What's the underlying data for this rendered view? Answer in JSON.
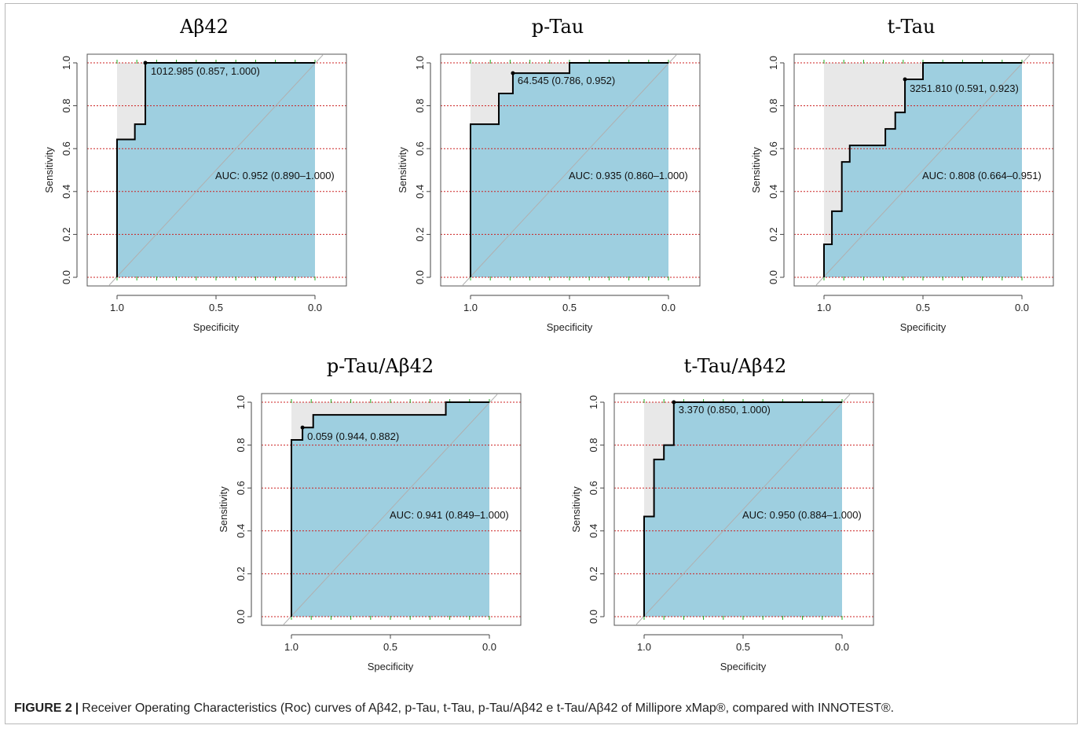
{
  "caption": {
    "label": "FIGURE 2",
    "separator": "|",
    "text": "Receiver Operating Characteristics (Roc) curves of Aβ42, p-Tau, t-Tau, p-Tau/Aβ42 e t-Tau/Aβ42 of Millipore xMap®, compared with INNOTEST®."
  },
  "colors": {
    "auc_fill": "#9ecfe0",
    "upper_fill": "#e8e8e8",
    "curve": "#000000",
    "diagonal": "#b0b0b0",
    "grid_dotted": "#cc2222",
    "tick_green": "#22aa22"
  },
  "chart_data": [
    {
      "type": "line",
      "title": "Aβ42",
      "xlabel": "Specificity",
      "ylabel": "Sensitivity",
      "xlim": [
        1.0,
        0.0
      ],
      "ylim": [
        0.0,
        1.0
      ],
      "x_ticks": [
        "1.0",
        "0.5",
        "0.0"
      ],
      "y_ticks": [
        "0.0",
        "0.2",
        "0.4",
        "0.6",
        "0.8",
        "1.0"
      ],
      "grid": "dotted horizontal",
      "series": [
        {
          "x": [
            1.0,
            1.0,
            0.91,
            0.91,
            0.86,
            0.857,
            0.857,
            0.0
          ],
          "y": [
            0.0,
            0.643,
            0.643,
            0.714,
            0.714,
            0.714,
            1.0,
            1.0
          ]
        }
      ],
      "threshold_point": {
        "x": 0.857,
        "y": 1.0,
        "label": "1012.985 (0.857, 1.000)"
      },
      "auc_label": "AUC: 0.952 (0.890–1.000)"
    },
    {
      "type": "line",
      "title": "p-Tau",
      "xlabel": "Specificity",
      "ylabel": "Sensitivity",
      "xlim": [
        1.0,
        0.0
      ],
      "ylim": [
        0.0,
        1.0
      ],
      "x_ticks": [
        "1.0",
        "0.5",
        "0.0"
      ],
      "y_ticks": [
        "0.0",
        "0.2",
        "0.4",
        "0.6",
        "0.8",
        "1.0"
      ],
      "grid": "dotted horizontal",
      "series": [
        {
          "x": [
            1.0,
            1.0,
            0.857,
            0.857,
            0.786,
            0.786,
            0.5,
            0.5,
            0.0
          ],
          "y": [
            0.0,
            0.714,
            0.714,
            0.857,
            0.857,
            0.952,
            0.952,
            1.0,
            1.0
          ]
        }
      ],
      "threshold_point": {
        "x": 0.786,
        "y": 0.952,
        "label": "64.545 (0.786, 0.952)"
      },
      "auc_label": "AUC: 0.935 (0.860–1.000)"
    },
    {
      "type": "line",
      "title": "t-Tau",
      "xlabel": "Specificity",
      "ylabel": "Sensitivity",
      "xlim": [
        1.0,
        0.0
      ],
      "ylim": [
        0.0,
        1.0
      ],
      "x_ticks": [
        "1.0",
        "0.5",
        "0.0"
      ],
      "y_ticks": [
        "0.0",
        "0.2",
        "0.4",
        "0.6",
        "0.8",
        "1.0"
      ],
      "grid": "dotted horizontal",
      "series": [
        {
          "x": [
            1.0,
            1.0,
            0.96,
            0.96,
            0.91,
            0.91,
            0.87,
            0.87,
            0.69,
            0.69,
            0.64,
            0.64,
            0.591,
            0.591,
            0.5,
            0.5,
            0.0
          ],
          "y": [
            0.0,
            0.154,
            0.154,
            0.308,
            0.308,
            0.538,
            0.538,
            0.615,
            0.615,
            0.692,
            0.692,
            0.769,
            0.769,
            0.923,
            0.923,
            1.0,
            1.0
          ]
        }
      ],
      "threshold_point": {
        "x": 0.591,
        "y": 0.923,
        "label": "3251.810 (0.591, 0.923)"
      },
      "auc_label": "AUC: 0.808 (0.664–0.951)"
    },
    {
      "type": "line",
      "title": "p-Tau/Aβ42",
      "xlabel": "Specificity",
      "ylabel": "Sensitivity",
      "xlim": [
        1.0,
        0.0
      ],
      "ylim": [
        0.0,
        1.0
      ],
      "x_ticks": [
        "1.0",
        "0.5",
        "0.0"
      ],
      "y_ticks": [
        "0.0",
        "0.2",
        "0.4",
        "0.6",
        "0.8",
        "1.0"
      ],
      "grid": "dotted horizontal",
      "series": [
        {
          "x": [
            1.0,
            1.0,
            0.944,
            0.944,
            0.89,
            0.89,
            0.22,
            0.22,
            0.0
          ],
          "y": [
            0.0,
            0.824,
            0.824,
            0.882,
            0.882,
            0.941,
            0.941,
            1.0,
            1.0
          ]
        }
      ],
      "threshold_point": {
        "x": 0.944,
        "y": 0.882,
        "label": "0.059 (0.944, 0.882)"
      },
      "auc_label": "AUC: 0.941 (0.849–1.000)"
    },
    {
      "type": "line",
      "title": "t-Tau/Aβ42",
      "xlabel": "Specificity",
      "ylabel": "Sensitivity",
      "xlim": [
        1.0,
        0.0
      ],
      "ylim": [
        0.0,
        1.0
      ],
      "x_ticks": [
        "1.0",
        "0.5",
        "0.0"
      ],
      "y_ticks": [
        "0.0",
        "0.2",
        "0.4",
        "0.6",
        "0.8",
        "1.0"
      ],
      "grid": "dotted horizontal",
      "series": [
        {
          "x": [
            1.0,
            1.0,
            0.95,
            0.95,
            0.9,
            0.9,
            0.85,
            0.85,
            0.0
          ],
          "y": [
            0.0,
            0.467,
            0.467,
            0.733,
            0.733,
            0.8,
            0.8,
            1.0,
            1.0
          ]
        }
      ],
      "threshold_point": {
        "x": 0.85,
        "y": 1.0,
        "label": "3.370 (0.850, 1.000)"
      },
      "auc_label": "AUC: 0.950 (0.884–1.000)"
    }
  ]
}
